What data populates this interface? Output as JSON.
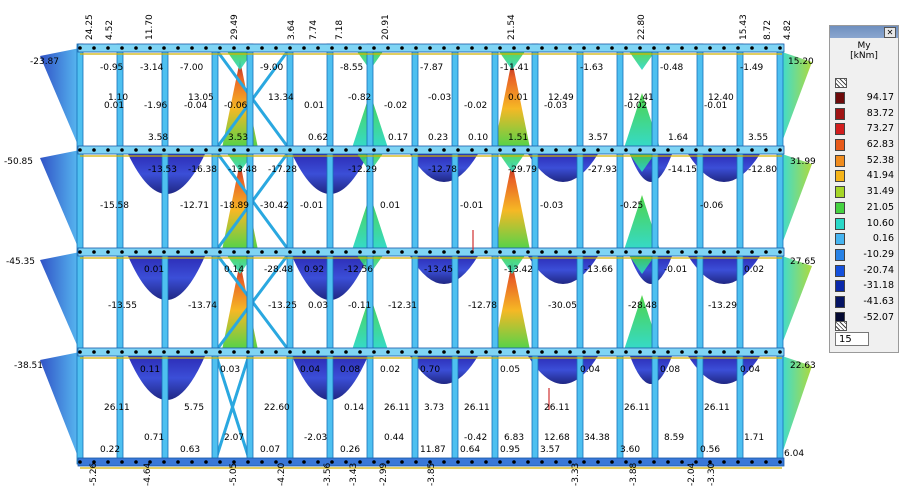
{
  "legend": {
    "quantity": "My",
    "unit": "[kNm]",
    "close_label": "✕",
    "input_value": "15",
    "items": [
      {
        "value": "94.17",
        "color": "#6e0a0a"
      },
      {
        "value": "83.72",
        "color": "#a01414"
      },
      {
        "value": "73.27",
        "color": "#d21e1e"
      },
      {
        "value": "62.83",
        "color": "#e85a1a"
      },
      {
        "value": "52.38",
        "color": "#f08c1e"
      },
      {
        "value": "41.94",
        "color": "#f5b419"
      },
      {
        "value": "31.49",
        "color": "#a6d628"
      },
      {
        "value": "21.05",
        "color": "#46d241"
      },
      {
        "value": "10.60",
        "color": "#2ad8c8"
      },
      {
        "value": "0.16",
        "color": "#46b4f0"
      },
      {
        "value": "-10.29",
        "color": "#2882e6"
      },
      {
        "value": "-20.74",
        "color": "#1450dc"
      },
      {
        "value": "-31.18",
        "color": "#0a28aa"
      },
      {
        "value": "-41.63",
        "color": "#061464"
      },
      {
        "value": "-52.07",
        "color": "#040a32"
      }
    ]
  },
  "frame": {
    "edge_values": [
      "-23.87",
      "15.20",
      "-50.85",
      "31.99",
      "-45.35",
      "27.65",
      "-38.51",
      "22.63",
      "6.04"
    ],
    "top_values": [
      "24.25",
      "4.52",
      "11.70",
      "29.49",
      "3.64",
      "7.74",
      "7.18",
      "20.91",
      "21.54",
      "22.80",
      "15.43",
      "8.72",
      "4.82"
    ],
    "bottom_values": [
      "-5.26",
      "-4.64",
      "-5.05",
      "-4.20",
      "-3.56",
      "-3.43",
      "-2.99",
      "-3.85",
      "-3.33",
      "-3.88",
      "-2.04",
      "-3.30"
    ],
    "span_values": [
      "-0.95",
      "-7.00",
      "-9.00",
      "-8.55",
      "-7.87",
      "-11.41",
      "-1.63",
      "-0.48",
      "-1.49",
      "-3.14",
      "-1.96",
      "-0.06",
      "0.01",
      "-0.02",
      "-0.02",
      "-0.03",
      "-0.02",
      "-0.01",
      "0.01",
      "-0.04",
      "-16.38",
      "-17.28",
      "-12.29",
      "-12.78",
      "-29.79",
      "-27.93",
      "-14.15",
      "-12.80",
      "-13.53",
      "-13.48",
      "-18.89",
      "-0.01",
      "0.01",
      "-0.01",
      "-0.03",
      "-0.25",
      "-0.06",
      "-15.58",
      "-12.71",
      "-30.42",
      "-28.48",
      "-12.56",
      "-13.45",
      "-13.42",
      "-13.66",
      "-0.01",
      "0.02",
      "0.01",
      "0.14",
      "0.92",
      "0.03",
      "-12.31",
      "-12.78",
      "-30.05",
      "-28.48",
      "-13.29",
      "-13.55",
      "-13.74",
      "-13.25",
      "-0.11",
      "0.08",
      "0.70",
      "0.05",
      "0.04",
      "0.08",
      "0.04",
      "0.11",
      "0.03",
      "0.04",
      "0.02",
      "26.11",
      "26.11",
      "26.11",
      "26.11",
      "26.11",
      "26.11",
      "5.75",
      "22.60",
      "0.14",
      "3.73",
      "0.23",
      "1.51",
      "3.57",
      "1.64",
      "3.55",
      "3.58",
      "3.53",
      "0.62",
      "0.17",
      "0.10",
      "0.64",
      "3.57",
      "3.60",
      "0.56",
      "0.22",
      "0.63",
      "0.07",
      "0.26",
      "11.87",
      "0.95",
      "6.83",
      "34.38",
      "8.59",
      "1.71",
      "0.71",
      "2.07",
      "-2.03",
      "0.44",
      "-0.42",
      "12.68",
      "12.49",
      "12.41",
      "12.40",
      "1.10",
      "13.05",
      "13.34",
      "-0.82",
      "-0.03",
      "0.01"
    ]
  }
}
